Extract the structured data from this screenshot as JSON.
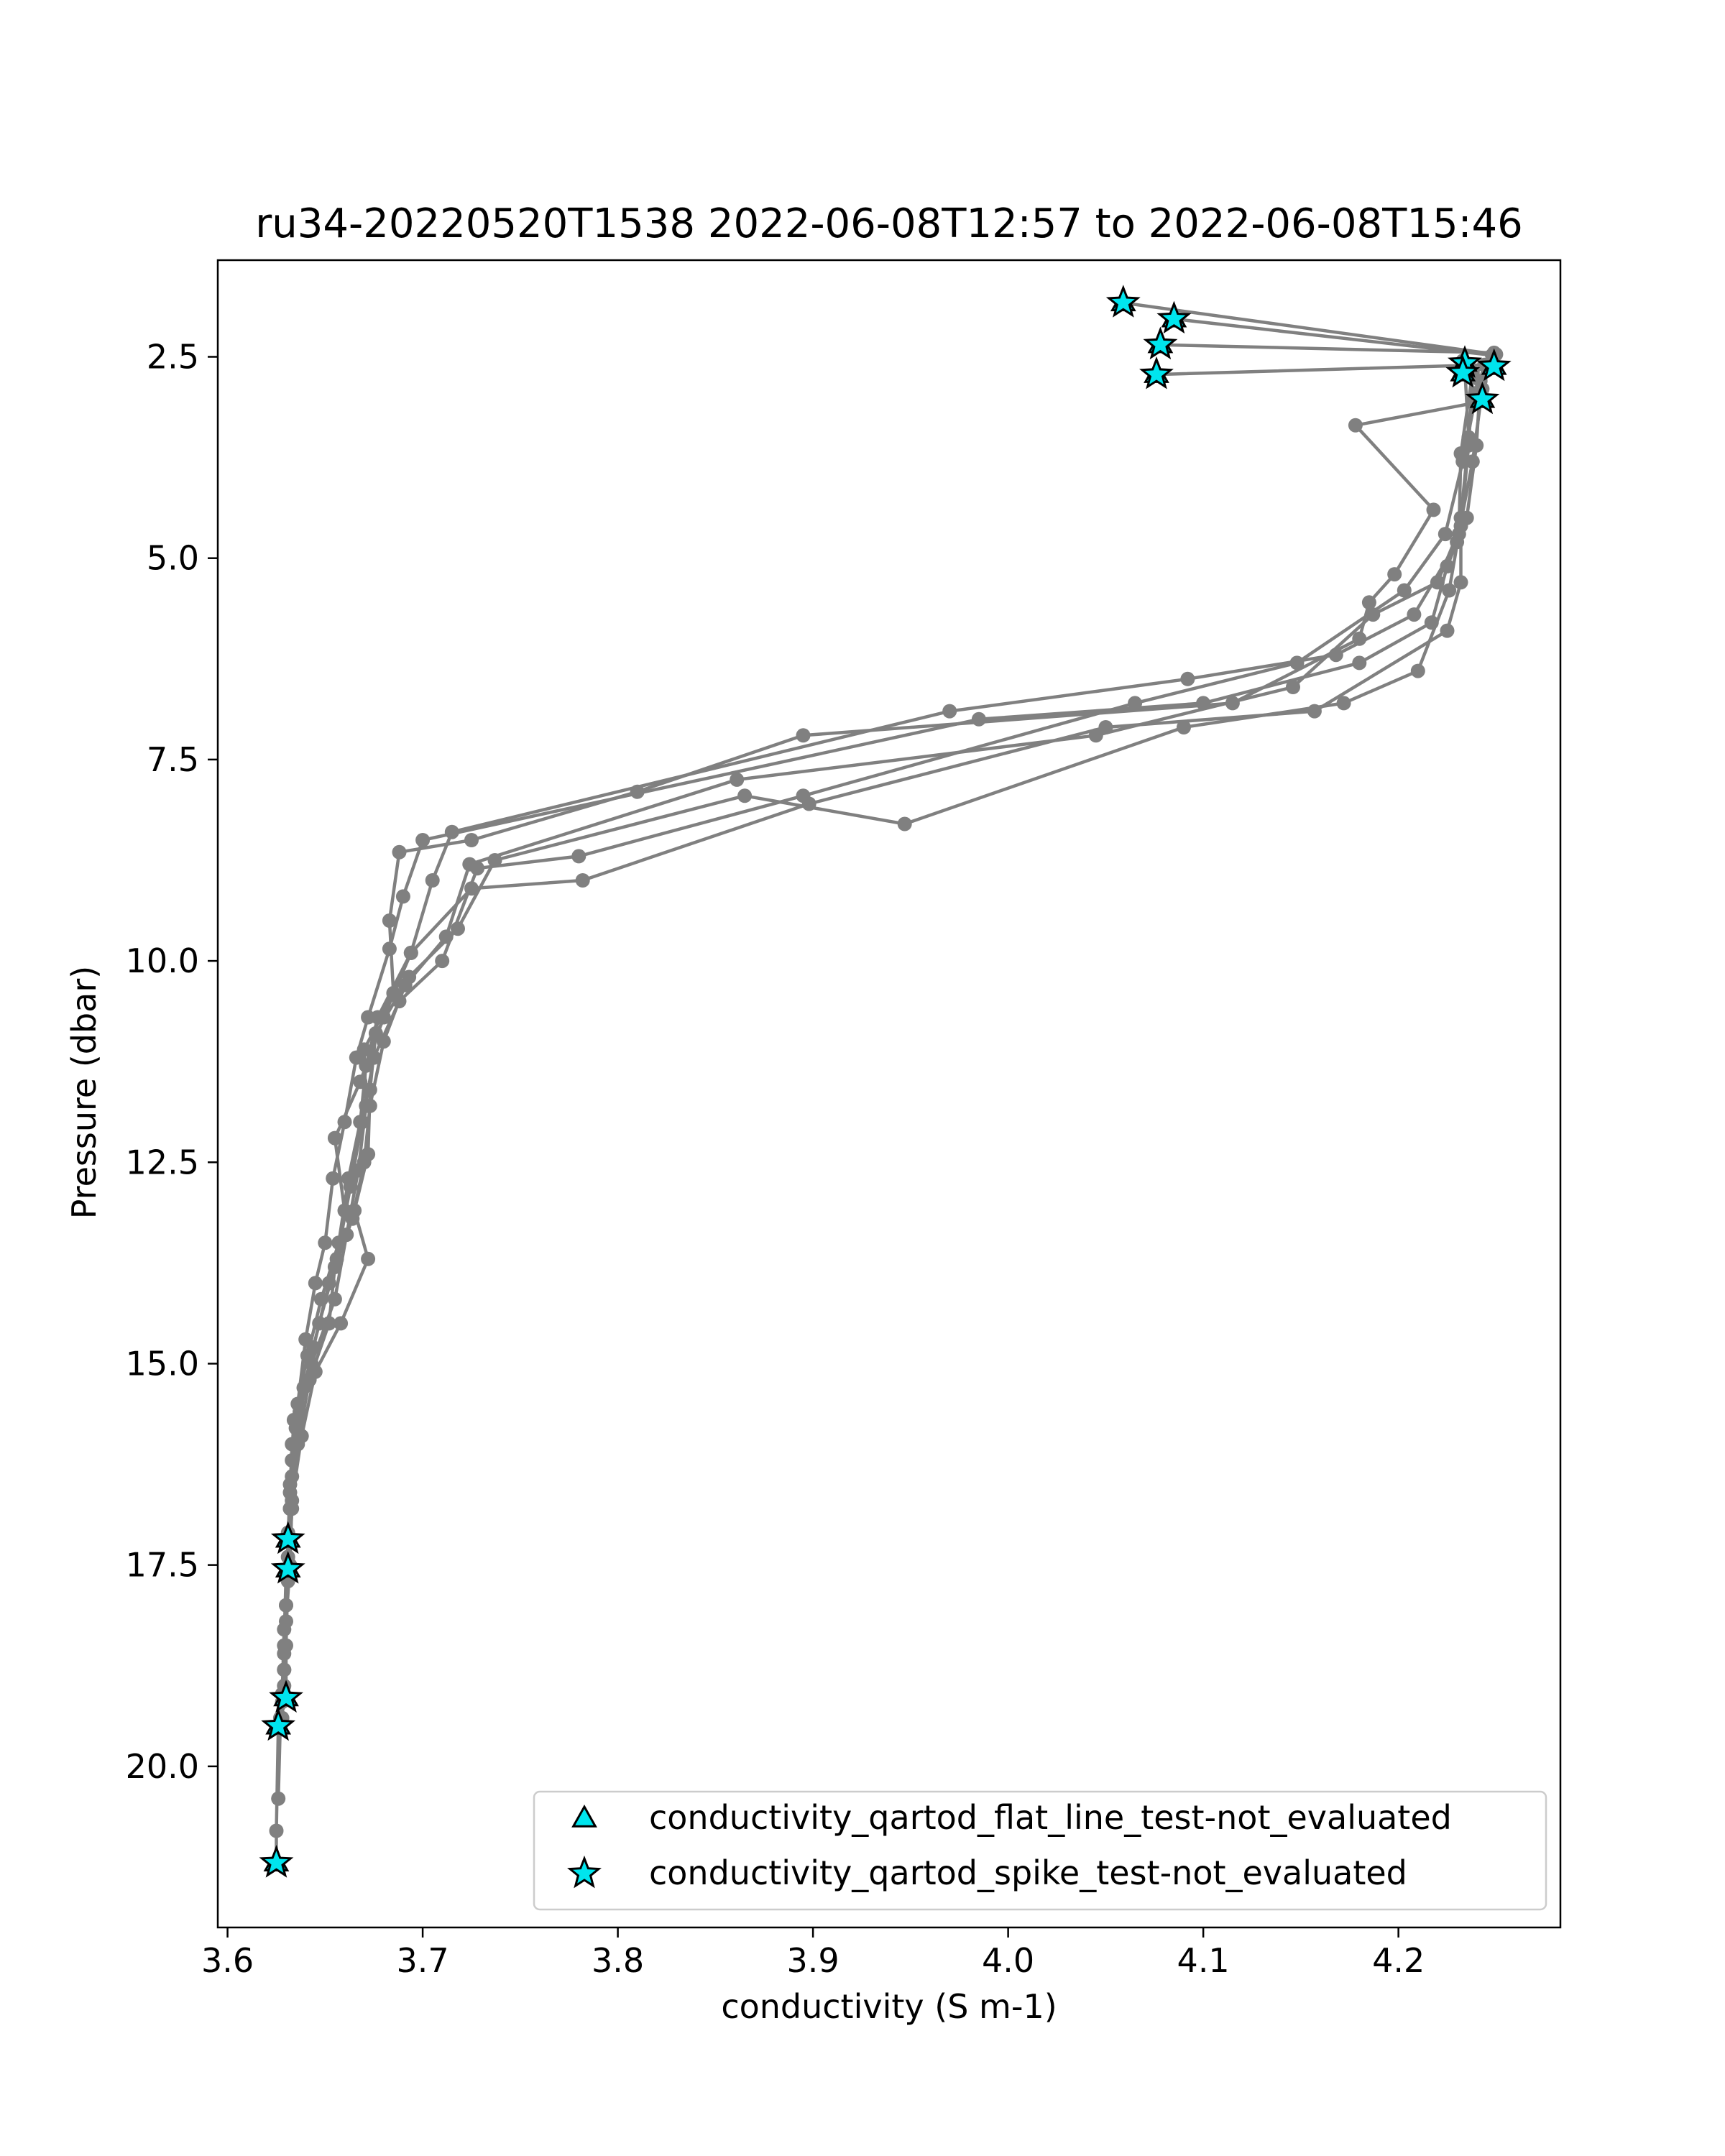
{
  "chart_data": {
    "type": "line",
    "title": "ru34-20220520T1538 2022-06-08T12:57 to 2022-06-08T15:46",
    "xlabel": "conductivity (S m-1)",
    "ylabel": "Pressure (dbar)",
    "xlim": [
      3.595,
      4.283
    ],
    "ylim": [
      22.0,
      1.3
    ],
    "y_inverted": true,
    "xticks": [
      3.6,
      3.7,
      3.8,
      3.9,
      4.0,
      4.1,
      4.2
    ],
    "xtick_labels": [
      "3.6",
      "3.7",
      "3.8",
      "3.9",
      "4.0",
      "4.1",
      "4.2"
    ],
    "yticks": [
      2.5,
      5.0,
      7.5,
      10.0,
      12.5,
      15.0,
      17.5,
      20.0
    ],
    "ytick_labels": [
      "2.5",
      "5.0",
      "7.5",
      "10.0",
      "12.5",
      "15.0",
      "17.5",
      "20.0"
    ],
    "grid": false,
    "legend_position": "lower-right",
    "line_color": "#808080",
    "marker_color": "#00e5ee",
    "series": [
      {
        "values": [
          [
            4.059,
            1.83
          ],
          [
            4.25,
            2.47
          ],
          [
            4.242,
            2.8
          ],
          [
            4.24,
            3.6
          ],
          [
            4.235,
            4.5
          ],
          [
            4.225,
            5.1
          ],
          [
            4.217,
            5.8
          ],
          [
            4.18,
            6.3
          ],
          [
            4.1,
            6.8
          ],
          [
            3.985,
            7.0
          ],
          [
            3.7,
            8.5
          ],
          [
            3.69,
            9.2
          ],
          [
            3.683,
            9.85
          ],
          [
            3.672,
            10.7
          ],
          [
            3.666,
            11.2
          ],
          [
            3.66,
            12.0
          ],
          [
            3.654,
            12.7
          ],
          [
            3.65,
            13.5
          ],
          [
            3.645,
            14.0
          ],
          [
            3.64,
            14.7
          ],
          [
            3.636,
            15.5
          ],
          [
            3.633,
            16.2
          ],
          [
            3.632,
            16.8
          ],
          [
            3.631,
            17.1
          ],
          [
            3.631,
            17.6
          ],
          [
            3.63,
            18.5
          ],
          [
            3.63,
            19.15
          ],
          [
            3.626,
            19.5
          ],
          [
            3.625,
            20.8
          ],
          [
            3.625,
            21.2
          ]
        ]
      },
      {
        "values": [
          [
            4.085,
            2.03
          ],
          [
            4.248,
            2.48
          ],
          [
            4.243,
            2.9
          ],
          [
            4.238,
            3.8
          ],
          [
            4.23,
            4.8
          ],
          [
            4.208,
            5.7
          ],
          [
            4.168,
            6.2
          ],
          [
            4.092,
            6.5
          ],
          [
            3.97,
            6.9
          ],
          [
            3.715,
            8.4
          ],
          [
            3.705,
            9.0
          ],
          [
            3.694,
            9.9
          ],
          [
            3.677,
            10.7
          ],
          [
            3.671,
            11.3
          ],
          [
            3.668,
            12.0
          ],
          [
            3.662,
            12.7
          ],
          [
            3.657,
            13.5
          ],
          [
            3.648,
            14.2
          ],
          [
            3.641,
            14.9
          ],
          [
            3.634,
            15.7
          ],
          [
            3.632,
            16.5
          ],
          [
            3.631,
            17.2
          ],
          [
            3.63,
            18.0
          ],
          [
            3.629,
            18.8
          ],
          [
            3.627,
            19.5
          ],
          [
            3.626,
            20.4
          ]
        ]
      },
      {
        "values": [
          [
            4.078,
            2.35
          ],
          [
            4.249,
            2.45
          ],
          [
            4.238,
            2.75
          ],
          [
            4.236,
            3.6
          ],
          [
            4.232,
            4.6
          ],
          [
            4.22,
            5.3
          ],
          [
            4.187,
            5.7
          ],
          [
            4.146,
            6.6
          ],
          [
            4.045,
            7.2
          ],
          [
            3.861,
            7.75
          ],
          [
            3.724,
            8.8
          ],
          [
            3.712,
            9.7
          ],
          [
            3.691,
            10.3
          ],
          [
            3.68,
            11.0
          ],
          [
            3.673,
            11.8
          ],
          [
            3.67,
            12.5
          ],
          [
            3.664,
            13.2
          ],
          [
            3.652,
            14.0
          ],
          [
            3.644,
            14.8
          ],
          [
            3.637,
            15.6
          ],
          [
            3.633,
            16.4
          ],
          [
            3.632,
            17.2
          ],
          [
            3.63,
            18.0
          ],
          [
            3.629,
            18.8
          ],
          [
            3.627,
            19.4
          ]
        ]
      },
      {
        "values": [
          [
            4.076,
            2.72
          ],
          [
            4.244,
            2.6
          ],
          [
            4.24,
            2.95
          ],
          [
            4.233,
            3.8
          ],
          [
            4.224,
            4.7
          ],
          [
            4.203,
            5.4
          ],
          [
            4.148,
            6.3
          ],
          [
            4.065,
            6.8
          ],
          [
            3.895,
            7.95
          ],
          [
            3.78,
            8.7
          ],
          [
            3.728,
            8.85
          ],
          [
            3.71,
            10.0
          ],
          [
            3.688,
            10.5
          ],
          [
            3.675,
            11.2
          ],
          [
            3.669,
            12.0
          ],
          [
            3.663,
            12.8
          ],
          [
            3.656,
            13.7
          ],
          [
            3.647,
            14.5
          ],
          [
            3.639,
            15.3
          ],
          [
            3.633,
            16.0
          ],
          [
            3.632,
            16.8
          ],
          [
            3.63,
            17.6
          ],
          [
            3.629,
            18.5
          ],
          [
            3.628,
            19.2
          ]
        ]
      },
      {
        "values": [
          [
            4.244,
            3.05
          ],
          [
            4.178,
            3.35
          ],
          [
            4.218,
            4.4
          ],
          [
            4.198,
            5.2
          ],
          [
            4.185,
            5.55
          ],
          [
            4.18,
            6.0
          ],
          [
            4.115,
            6.8
          ],
          [
            3.895,
            7.2
          ],
          [
            3.81,
            7.9
          ],
          [
            3.725,
            8.5
          ],
          [
            3.688,
            8.65
          ],
          [
            3.683,
            9.5
          ],
          [
            3.685,
            10.4
          ],
          [
            3.67,
            11.1
          ],
          [
            3.671,
            11.8
          ],
          [
            3.667,
            12.6
          ],
          [
            3.661,
            13.4
          ],
          [
            3.655,
            14.2
          ],
          [
            3.643,
            15.0
          ],
          [
            3.635,
            15.8
          ],
          [
            3.632,
            16.6
          ],
          [
            3.631,
            17.4
          ],
          [
            3.629,
            18.3
          ],
          [
            3.628,
            19.1
          ]
        ]
      },
      {
        "values": [
          [
            4.233,
            2.55
          ],
          [
            4.238,
            2.7
          ],
          [
            4.232,
            3.7
          ],
          [
            4.231,
            4.7
          ],
          [
            4.226,
            5.4
          ],
          [
            4.21,
            6.4
          ],
          [
            4.172,
            6.8
          ],
          [
            4.09,
            7.1
          ],
          [
            3.947,
            8.3
          ],
          [
            3.865,
            7.95
          ],
          [
            3.737,
            8.75
          ],
          [
            3.718,
            9.6
          ],
          [
            3.693,
            10.2
          ],
          [
            3.676,
            10.9
          ],
          [
            3.673,
            11.6
          ],
          [
            3.672,
            12.4
          ],
          [
            3.665,
            13.1
          ],
          [
            3.672,
            13.7
          ],
          [
            3.658,
            14.5
          ],
          [
            3.645,
            15.1
          ],
          [
            3.638,
            15.9
          ],
          [
            3.633,
            16.7
          ],
          [
            3.632,
            17.5
          ],
          [
            3.63,
            18.2
          ],
          [
            3.629,
            19.0
          ]
        ]
      },
      {
        "values": [
          [
            4.234,
            2.65
          ],
          [
            4.236,
            3.5
          ],
          [
            4.232,
            4.5
          ],
          [
            4.232,
            5.3
          ],
          [
            4.225,
            5.9
          ],
          [
            4.157,
            6.9
          ],
          [
            4.05,
            7.1
          ],
          [
            3.898,
            8.05
          ],
          [
            3.782,
            9.0
          ],
          [
            3.725,
            9.1
          ],
          [
            3.694,
            9.9
          ],
          [
            3.68,
            10.7
          ],
          [
            3.668,
            11.5
          ],
          [
            3.655,
            12.2
          ],
          [
            3.66,
            13.1
          ],
          [
            3.655,
            13.8
          ],
          [
            3.652,
            14.5
          ],
          [
            3.642,
            15.2
          ],
          [
            3.636,
            16.0
          ],
          [
            3.633,
            16.8
          ],
          [
            3.631,
            17.7
          ],
          [
            3.629,
            18.6
          ],
          [
            3.628,
            19.4
          ]
        ]
      }
    ],
    "spike_flag_points": [
      [
        4.059,
        1.83
      ],
      [
        4.085,
        2.03
      ],
      [
        4.078,
        2.35
      ],
      [
        4.076,
        2.72
      ],
      [
        4.234,
        2.58
      ],
      [
        4.249,
        2.62
      ],
      [
        4.233,
        2.7
      ],
      [
        4.243,
        3.03
      ],
      [
        3.631,
        17.18
      ],
      [
        3.631,
        17.55
      ],
      [
        3.63,
        19.15
      ],
      [
        3.626,
        19.5
      ],
      [
        3.625,
        21.2
      ]
    ],
    "flat_line_flag_points": [
      [
        4.059,
        1.83
      ],
      [
        4.085,
        2.03
      ],
      [
        4.078,
        2.35
      ],
      [
        4.076,
        2.72
      ],
      [
        4.234,
        2.58
      ],
      [
        4.249,
        2.62
      ],
      [
        4.233,
        2.7
      ],
      [
        4.243,
        3.03
      ],
      [
        3.631,
        17.18
      ],
      [
        3.631,
        17.55
      ],
      [
        3.63,
        19.15
      ],
      [
        3.626,
        19.5
      ],
      [
        3.625,
        21.2
      ]
    ],
    "legend": [
      {
        "label": "conductivity_qartod_flat_line_test-not_evaluated",
        "marker": "triangle",
        "color": "#00e5ee"
      },
      {
        "label": "conductivity_qartod_spike_test-not_evaluated",
        "marker": "star",
        "color": "#00e5ee"
      }
    ]
  }
}
